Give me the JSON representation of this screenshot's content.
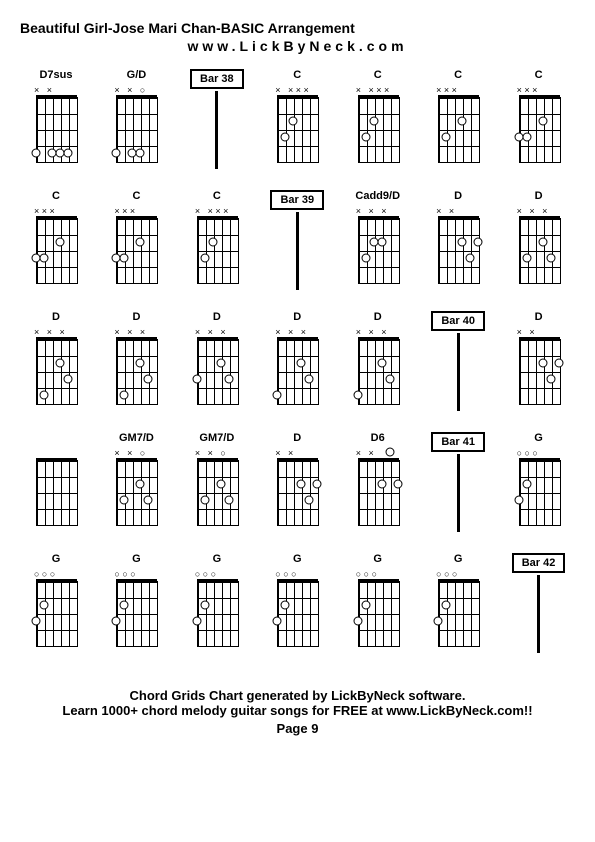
{
  "header": {
    "title": "Beautiful Girl-Jose Mari Chan-BASIC Arrangement",
    "subtitle": "www.LickByNeck.com"
  },
  "footer": {
    "line1": "Chord Grids Chart generated by LickByNeck software.",
    "line2": "Learn 1000+ chord melody guitar songs for FREE at www.LickByNeck.com!!",
    "page": "Page 9"
  },
  "cells": [
    {
      "type": "chord",
      "name": "D7sus",
      "markers": "× ×",
      "dots": [
        [
          3,
          4
        ],
        [
          4,
          4
        ],
        [
          5,
          4
        ],
        [
          1,
          4
        ]
      ]
    },
    {
      "type": "chord",
      "name": "G/D",
      "markers": "× ×  ○",
      "dots": [
        [
          3,
          4
        ],
        [
          4,
          4
        ],
        [
          1,
          4
        ]
      ]
    },
    {
      "type": "bar",
      "label": "Bar 38"
    },
    {
      "type": "chord",
      "name": "C",
      "markers": "×   ×××",
      "dots": [
        [
          2,
          3
        ],
        [
          3,
          2
        ]
      ]
    },
    {
      "type": "chord",
      "name": "C",
      "markers": "×   ×××",
      "dots": [
        [
          2,
          3
        ],
        [
          3,
          2
        ]
      ]
    },
    {
      "type": "chord",
      "name": "C",
      "markers": "    ×××",
      "dots": [
        [
          2,
          3
        ],
        [
          4,
          2
        ]
      ]
    },
    {
      "type": "chord",
      "name": "C",
      "markers": "    ×××",
      "dots": [
        [
          2,
          3
        ],
        [
          4,
          2
        ],
        [
          1,
          3
        ]
      ]
    },
    {
      "type": "chord",
      "name": "C",
      "markers": "    ×××",
      "dots": [
        [
          2,
          3
        ],
        [
          4,
          2
        ],
        [
          1,
          3
        ]
      ]
    },
    {
      "type": "chord",
      "name": "C",
      "markers": "    ×××",
      "dots": [
        [
          2,
          3
        ],
        [
          4,
          2
        ],
        [
          1,
          3
        ]
      ]
    },
    {
      "type": "chord",
      "name": "C",
      "markers": "×   ×××",
      "dots": [
        [
          2,
          3
        ],
        [
          3,
          2
        ]
      ]
    },
    {
      "type": "bar",
      "label": "Bar 39"
    },
    {
      "type": "chord",
      "name": "Cadd9/D",
      "markers": "× × ×",
      "dots": [
        [
          2,
          3
        ],
        [
          4,
          2
        ],
        [
          3,
          2
        ]
      ]
    },
    {
      "type": "chord",
      "name": "D",
      "markers": "× ×",
      "dots": [
        [
          4,
          2
        ],
        [
          5,
          3
        ],
        [
          6,
          2
        ]
      ]
    },
    {
      "type": "chord",
      "name": "D",
      "markers": "× ×  ×",
      "dots": [
        [
          4,
          2
        ],
        [
          5,
          3
        ],
        [
          2,
          3
        ]
      ]
    },
    {
      "type": "chord",
      "name": "D",
      "markers": "× ×   ×",
      "dots": [
        [
          4,
          2
        ],
        [
          5,
          3
        ],
        [
          2,
          4
        ]
      ]
    },
    {
      "type": "chord",
      "name": "D",
      "markers": "× ×   ×",
      "dots": [
        [
          4,
          2
        ],
        [
          5,
          3
        ],
        [
          2,
          4
        ]
      ]
    },
    {
      "type": "chord",
      "name": "D",
      "markers": "× ×  ×",
      "dots": [
        [
          4,
          2
        ],
        [
          5,
          3
        ],
        [
          1,
          3
        ]
      ]
    },
    {
      "type": "chord",
      "name": "D",
      "markers": "× ×   ×",
      "dots": [
        [
          4,
          2
        ],
        [
          5,
          3
        ],
        [
          1,
          4
        ]
      ]
    },
    {
      "type": "chord",
      "name": "D",
      "markers": "× ×   ×",
      "dots": [
        [
          4,
          2
        ],
        [
          5,
          3
        ],
        [
          1,
          4
        ]
      ]
    },
    {
      "type": "bar",
      "label": "Bar 40"
    },
    {
      "type": "chord",
      "name": "D",
      "markers": "× ×",
      "dots": [
        [
          4,
          2
        ],
        [
          5,
          3
        ],
        [
          6,
          2
        ]
      ]
    },
    {
      "type": "chord",
      "name": "",
      "markers": "",
      "dots": []
    },
    {
      "type": "chord",
      "name": "GM7/D",
      "markers": "× × ○",
      "dots": [
        [
          2,
          3
        ],
        [
          4,
          2
        ],
        [
          5,
          3
        ]
      ]
    },
    {
      "type": "chord",
      "name": "GM7/D",
      "markers": "× × ○",
      "dots": [
        [
          2,
          3
        ],
        [
          4,
          2
        ],
        [
          5,
          3
        ]
      ]
    },
    {
      "type": "chord",
      "name": "D",
      "markers": "× ×",
      "dots": [
        [
          4,
          2
        ],
        [
          5,
          3
        ],
        [
          6,
          2
        ]
      ]
    },
    {
      "type": "chord",
      "name": "D6",
      "markers": "× ×",
      "dots": [
        [
          4,
          2
        ],
        [
          6,
          2
        ],
        [
          5,
          0
        ]
      ]
    },
    {
      "type": "bar",
      "label": "Bar 41"
    },
    {
      "type": "chord",
      "name": "G",
      "markers": "   ○○○",
      "dots": [
        [
          1,
          3
        ],
        [
          2,
          2
        ]
      ]
    },
    {
      "type": "chord",
      "name": "G",
      "markers": "   ○○○",
      "dots": [
        [
          1,
          3
        ],
        [
          2,
          2
        ]
      ]
    },
    {
      "type": "chord",
      "name": "G",
      "markers": "   ○○○",
      "dots": [
        [
          1,
          3
        ],
        [
          2,
          2
        ]
      ]
    },
    {
      "type": "chord",
      "name": "G",
      "markers": "   ○○○",
      "dots": [
        [
          1,
          3
        ],
        [
          2,
          2
        ]
      ]
    },
    {
      "type": "chord",
      "name": "G",
      "markers": "   ○○○",
      "dots": [
        [
          1,
          3
        ],
        [
          2,
          2
        ]
      ]
    },
    {
      "type": "chord",
      "name": "G",
      "markers": "   ○○○",
      "dots": [
        [
          1,
          3
        ],
        [
          2,
          2
        ]
      ]
    },
    {
      "type": "chord",
      "name": "G",
      "markers": "   ○○○",
      "dots": [
        [
          1,
          3
        ],
        [
          2,
          2
        ]
      ]
    },
    {
      "type": "bar",
      "label": "Bar 42"
    }
  ],
  "styling": {
    "background_color": "#ffffff",
    "text_color": "#000000",
    "string_count": 6,
    "fret_count": 4,
    "diagram_width": 50,
    "diagram_height": 85,
    "columns": 7,
    "rows": 5,
    "title_fontsize": 14,
    "chord_name_fontsize": 11,
    "footer_fontsize": 13
  }
}
